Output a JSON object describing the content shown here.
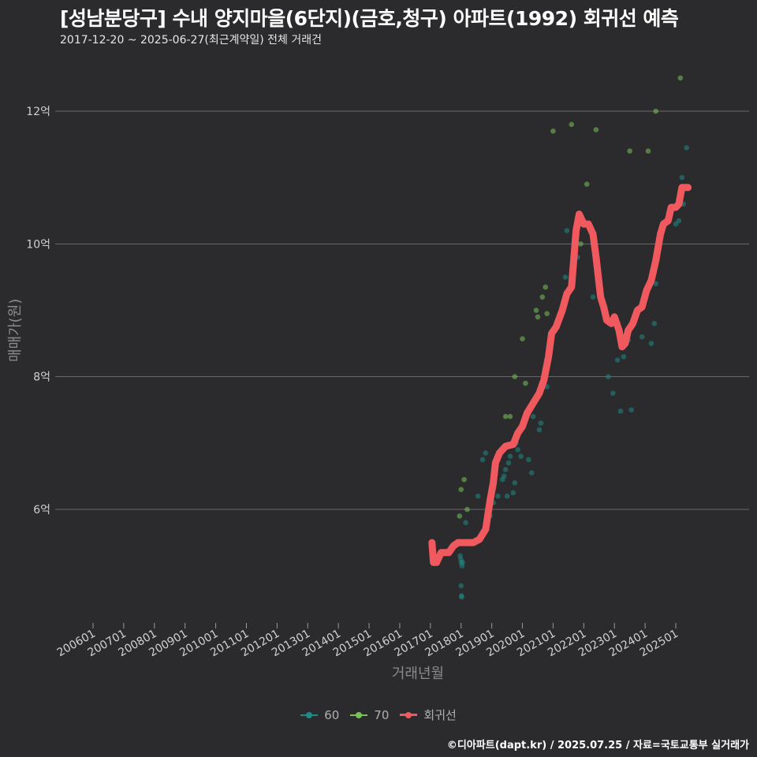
{
  "chart_data": {
    "type": "scatter",
    "title": "[성남분당구] 수내 양지마을(6단지)(금호,청구) 아파트(1992) 회귀선 예측",
    "subtitle": "2017-12-20 ~ 2025-06-27(최근계약일) 전체 거래건",
    "xlabel": "거래년월",
    "ylabel": "매매가(원)",
    "ylim": [
      4.3,
      12.9
    ],
    "y_ticks": [
      6,
      8,
      10,
      12
    ],
    "y_tick_labels": [
      "6억",
      "8억",
      "10억",
      "12억"
    ],
    "x_tick_labels": [
      "200601",
      "200701",
      "200801",
      "200901",
      "201001",
      "201101",
      "201201",
      "201301",
      "201401",
      "201501",
      "201601",
      "201701",
      "201801",
      "201901",
      "202001",
      "202101",
      "202201",
      "202301",
      "202401",
      "202501"
    ],
    "legend": [
      {
        "name": "60",
        "color": "#1f8a86"
      },
      {
        "name": "70",
        "color": "#78c25a"
      },
      {
        "name": "회귀선",
        "color": "#f05a5e"
      }
    ],
    "series": [
      {
        "name": "60",
        "color": "#1f8a86",
        "points": [
          [
            2017.97,
            5.3
          ],
          [
            2017.99,
            5.25
          ],
          [
            2018.0,
            5.2
          ],
          [
            2018.0,
            4.85
          ],
          [
            2018.01,
            4.7
          ],
          [
            2018.02,
            4.68
          ],
          [
            2018.03,
            5.15
          ],
          [
            2018.05,
            5.2
          ],
          [
            2018.1,
            5.5
          ],
          [
            2018.15,
            5.8
          ],
          [
            2018.55,
            6.2
          ],
          [
            2018.7,
            6.75
          ],
          [
            2018.8,
            6.85
          ],
          [
            2018.95,
            5.9
          ],
          [
            2019.05,
            6.1
          ],
          [
            2019.2,
            6.2
          ],
          [
            2019.35,
            6.45
          ],
          [
            2019.4,
            6.5
          ],
          [
            2019.45,
            6.6
          ],
          [
            2019.5,
            6.2
          ],
          [
            2019.55,
            6.7
          ],
          [
            2019.6,
            6.8
          ],
          [
            2019.7,
            6.25
          ],
          [
            2019.75,
            6.4
          ],
          [
            2019.8,
            7.0
          ],
          [
            2019.85,
            6.9
          ],
          [
            2019.95,
            6.8
          ],
          [
            2020.2,
            6.75
          ],
          [
            2020.3,
            6.55
          ],
          [
            2020.35,
            7.4
          ],
          [
            2020.55,
            7.2
          ],
          [
            2020.6,
            7.3
          ],
          [
            2020.7,
            7.9
          ],
          [
            2020.8,
            7.85
          ],
          [
            2021.4,
            9.5
          ],
          [
            2021.45,
            10.2
          ],
          [
            2021.8,
            9.8
          ],
          [
            2022.3,
            9.2
          ],
          [
            2022.8,
            8.0
          ],
          [
            2022.95,
            7.75
          ],
          [
            2023.1,
            8.25
          ],
          [
            2023.2,
            7.48
          ],
          [
            2023.3,
            8.3
          ],
          [
            2023.45,
            8.55
          ],
          [
            2023.55,
            7.5
          ],
          [
            2023.9,
            8.6
          ],
          [
            2024.2,
            8.5
          ],
          [
            2024.3,
            8.8
          ],
          [
            2024.35,
            9.4
          ],
          [
            2025.0,
            10.3
          ],
          [
            2025.1,
            10.35
          ],
          [
            2025.2,
            11.0
          ],
          [
            2025.25,
            10.6
          ],
          [
            2025.35,
            11.45
          ]
        ]
      },
      {
        "name": "70",
        "color": "#78c25a",
        "points": [
          [
            2017.95,
            5.9
          ],
          [
            2018.0,
            6.3
          ],
          [
            2018.1,
            6.45
          ],
          [
            2018.2,
            6.0
          ],
          [
            2019.45,
            7.4
          ],
          [
            2019.6,
            7.4
          ],
          [
            2019.75,
            8.0
          ],
          [
            2020.0,
            8.57
          ],
          [
            2020.1,
            7.9
          ],
          [
            2020.45,
            9.0
          ],
          [
            2020.5,
            8.9
          ],
          [
            2020.65,
            9.2
          ],
          [
            2020.75,
            9.35
          ],
          [
            2020.8,
            8.95
          ],
          [
            2021.0,
            11.7
          ],
          [
            2021.6,
            11.8
          ],
          [
            2021.9,
            10.0
          ],
          [
            2022.1,
            10.9
          ],
          [
            2022.4,
            11.72
          ],
          [
            2023.5,
            11.4
          ],
          [
            2024.1,
            11.4
          ],
          [
            2024.35,
            12.0
          ],
          [
            2025.15,
            12.5
          ]
        ]
      },
      {
        "name": "회귀선",
        "color": "#f05a5e",
        "type": "line",
        "points": [
          [
            2017.05,
            5.5
          ],
          [
            2017.1,
            5.2
          ],
          [
            2017.2,
            5.2
          ],
          [
            2017.35,
            5.35
          ],
          [
            2017.6,
            5.35
          ],
          [
            2017.75,
            5.45
          ],
          [
            2017.9,
            5.5
          ],
          [
            2018.1,
            5.5
          ],
          [
            2018.4,
            5.5
          ],
          [
            2018.6,
            5.55
          ],
          [
            2018.8,
            5.7
          ],
          [
            2018.95,
            6.15
          ],
          [
            2019.05,
            6.4
          ],
          [
            2019.12,
            6.7
          ],
          [
            2019.25,
            6.85
          ],
          [
            2019.45,
            6.95
          ],
          [
            2019.7,
            6.98
          ],
          [
            2019.85,
            7.15
          ],
          [
            2020.0,
            7.25
          ],
          [
            2020.15,
            7.45
          ],
          [
            2020.35,
            7.6
          ],
          [
            2020.55,
            7.75
          ],
          [
            2020.7,
            7.95
          ],
          [
            2020.85,
            8.3
          ],
          [
            2020.95,
            8.65
          ],
          [
            2021.1,
            8.75
          ],
          [
            2021.3,
            9.0
          ],
          [
            2021.45,
            9.25
          ],
          [
            2021.6,
            9.35
          ],
          [
            2021.75,
            10.2
          ],
          [
            2021.85,
            10.45
          ],
          [
            2022.0,
            10.3
          ],
          [
            2022.15,
            10.3
          ],
          [
            2022.3,
            10.15
          ],
          [
            2022.4,
            9.8
          ],
          [
            2022.55,
            9.2
          ],
          [
            2022.65,
            9.05
          ],
          [
            2022.75,
            8.85
          ],
          [
            2022.9,
            8.8
          ],
          [
            2023.0,
            8.9
          ],
          [
            2023.15,
            8.7
          ],
          [
            2023.25,
            8.45
          ],
          [
            2023.35,
            8.5
          ],
          [
            2023.45,
            8.7
          ],
          [
            2023.6,
            8.8
          ],
          [
            2023.75,
            9.0
          ],
          [
            2023.9,
            9.05
          ],
          [
            2024.05,
            9.3
          ],
          [
            2024.2,
            9.45
          ],
          [
            2024.35,
            9.75
          ],
          [
            2024.5,
            10.15
          ],
          [
            2024.6,
            10.3
          ],
          [
            2024.75,
            10.35
          ],
          [
            2024.85,
            10.55
          ],
          [
            2025.0,
            10.55
          ],
          [
            2025.1,
            10.6
          ],
          [
            2025.2,
            10.85
          ],
          [
            2025.4,
            10.85
          ]
        ]
      }
    ]
  },
  "footer": "©디아파트(dapt.kr) / 2025.07.25 / 자료=국토교통부 실거래가"
}
